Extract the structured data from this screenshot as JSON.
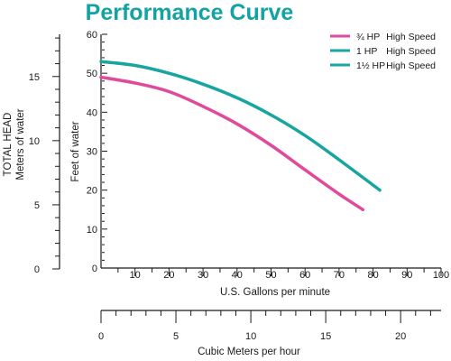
{
  "chart_data": {
    "type": "line",
    "title": "Performance Curve",
    "x": {
      "label": "U.S. Gallons per minute",
      "range": [
        0,
        100
      ],
      "ticks": [
        10,
        20,
        30,
        40,
        50,
        60,
        70,
        80,
        90,
        100
      ],
      "minor_step": 5
    },
    "x2": {
      "label": "Cubic Meters per hour",
      "range": [
        0,
        22.7
      ],
      "ticks": [
        0,
        5,
        10,
        15,
        20
      ],
      "minor_step": 1
    },
    "y": {
      "label": "Feet of water",
      "range": [
        0,
        60
      ],
      "ticks": [
        0,
        10,
        20,
        30,
        40,
        50,
        60
      ],
      "minor_step": 2
    },
    "y2": {
      "label_line1": "TOTAL HEAD",
      "label_line2": "Meters of water",
      "range": [
        0,
        18.29
      ],
      "ticks": [
        0,
        5,
        10,
        15
      ],
      "minor_step": 1
    },
    "legend_position": "top-right",
    "grid": false,
    "series": [
      {
        "name": "¾ HP",
        "speed": "High Speed",
        "color": "#e04a9a",
        "points": [
          [
            0,
            49
          ],
          [
            10,
            47.5
          ],
          [
            20,
            45.3
          ],
          [
            30,
            41.5
          ],
          [
            40,
            37
          ],
          [
            50,
            31.5
          ],
          [
            60,
            25.2
          ],
          [
            70,
            19
          ],
          [
            77,
            15
          ]
        ]
      },
      {
        "name": "1 HP",
        "speed": "High Speed",
        "color": "#17a5a0",
        "points": [
          [
            0,
            53
          ],
          [
            10,
            52
          ],
          [
            20,
            50
          ],
          [
            30,
            47.2
          ],
          [
            40,
            43.7
          ],
          [
            50,
            39.3
          ],
          [
            60,
            34
          ],
          [
            70,
            27.8
          ],
          [
            82,
            20
          ]
        ]
      },
      {
        "name": "1½ HP",
        "speed": "High Speed",
        "color": "#17a5a0",
        "points": []
      }
    ]
  }
}
